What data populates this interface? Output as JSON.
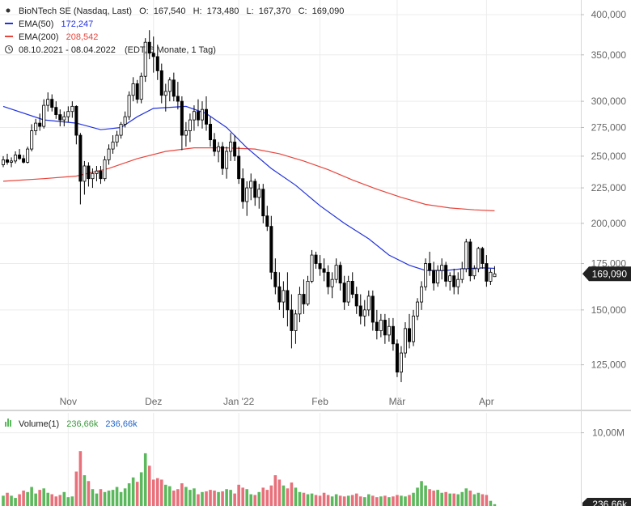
{
  "chart_data": {
    "type": "candlestick",
    "legend": {
      "main": {
        "label": "BioNTech SE (Nasdaq, Last)",
        "o_label": "O:",
        "o": "167,540",
        "h_label": "H:",
        "h": "173,480",
        "l_label": "L:",
        "l": "167,370",
        "c_label": "C:",
        "c": "169,090"
      },
      "ema50": {
        "label": "EMA(50)",
        "value": "172,247",
        "color": "#2233dd"
      },
      "ema200": {
        "label": "EMA(200)",
        "value": "208,542",
        "color": "#e8453c"
      },
      "range": {
        "text": "08.10.2021 - 08.04.2022",
        "note": "(EDT, 6 Monate, 1 Tag)"
      }
    },
    "y_scale": "log",
    "y_range": [
      108,
      420
    ],
    "y_ticks": [
      {
        "value": 125,
        "label": "125,000"
      },
      {
        "value": 150,
        "label": "150,000"
      },
      {
        "value": 175,
        "label": "175,000"
      },
      {
        "value": 200,
        "label": "200,000"
      },
      {
        "value": 225,
        "label": "225,000"
      },
      {
        "value": 250,
        "label": "250,000"
      },
      {
        "value": 275,
        "label": "275,000"
      },
      {
        "value": 300,
        "label": "300,000"
      },
      {
        "value": 350,
        "label": "350,000"
      },
      {
        "value": 400,
        "label": "400,000"
      }
    ],
    "x_ticks": [
      {
        "index": 16,
        "label": "Nov"
      },
      {
        "index": 37,
        "label": "Dez"
      },
      {
        "index": 58,
        "label": "Jan '22"
      },
      {
        "index": 78,
        "label": "Feb"
      },
      {
        "index": 97,
        "label": "Mär"
      },
      {
        "index": 119,
        "label": "Apr"
      }
    ],
    "last_price": {
      "value": 169.09,
      "label": "169,090"
    },
    "candles": [
      [
        243,
        250,
        241,
        247
      ],
      [
        247,
        252,
        243,
        245
      ],
      [
        245,
        249,
        241,
        246
      ],
      [
        246,
        254,
        244,
        251
      ],
      [
        251,
        256,
        247,
        248
      ],
      [
        248,
        251,
        244,
        245
      ],
      [
        245,
        258,
        244,
        256
      ],
      [
        256,
        278,
        254,
        272
      ],
      [
        272,
        283,
        268,
        279
      ],
      [
        279,
        288,
        272,
        276
      ],
      [
        276,
        302,
        274,
        296
      ],
      [
        296,
        309,
        290,
        302
      ],
      [
        302,
        307,
        290,
        294
      ],
      [
        294,
        300,
        283,
        287
      ],
      [
        287,
        292,
        276,
        282
      ],
      [
        282,
        290,
        276,
        285
      ],
      [
        285,
        295,
        280,
        290
      ],
      [
        290,
        300,
        284,
        295
      ],
      [
        295,
        296,
        260,
        268
      ],
      [
        268,
        270,
        213,
        230
      ],
      [
        230,
        246,
        220,
        242
      ],
      [
        242,
        245,
        226,
        232
      ],
      [
        232,
        240,
        225,
        236
      ],
      [
        236,
        242,
        230,
        238
      ],
      [
        238,
        242,
        228,
        232
      ],
      [
        232,
        250,
        230,
        247
      ],
      [
        247,
        260,
        243,
        256
      ],
      [
        256,
        268,
        252,
        262
      ],
      [
        262,
        272,
        258,
        268
      ],
      [
        268,
        280,
        265,
        278
      ],
      [
        278,
        290,
        275,
        285
      ],
      [
        285,
        310,
        282,
        306
      ],
      [
        306,
        325,
        300,
        318
      ],
      [
        318,
        322,
        298,
        302
      ],
      [
        302,
        330,
        298,
        326
      ],
      [
        326,
        370,
        320,
        365
      ],
      [
        365,
        380,
        345,
        352
      ],
      [
        352,
        372,
        330,
        348
      ],
      [
        348,
        362,
        322,
        332
      ],
      [
        332,
        340,
        298,
        306
      ],
      [
        306,
        318,
        290,
        310
      ],
      [
        310,
        325,
        300,
        322
      ],
      [
        322,
        330,
        300,
        305
      ],
      [
        305,
        320,
        292,
        300
      ],
      [
        300,
        305,
        255,
        268
      ],
      [
        268,
        280,
        258,
        272
      ],
      [
        272,
        288,
        262,
        282
      ],
      [
        282,
        296,
        272,
        290
      ],
      [
        290,
        302,
        276,
        282
      ],
      [
        282,
        300,
        274,
        292
      ],
      [
        292,
        305,
        272,
        278
      ],
      [
        278,
        285,
        258,
        264
      ],
      [
        264,
        270,
        250,
        254
      ],
      [
        254,
        262,
        245,
        258
      ],
      [
        258,
        262,
        235,
        240
      ],
      [
        240,
        258,
        232,
        254
      ],
      [
        254,
        270,
        246,
        262
      ],
      [
        262,
        268,
        246,
        250
      ],
      [
        250,
        258,
        228,
        232
      ],
      [
        232,
        240,
        210,
        215
      ],
      [
        215,
        230,
        205,
        225
      ],
      [
        225,
        236,
        216,
        230
      ],
      [
        230,
        232,
        212,
        218
      ],
      [
        218,
        228,
        210,
        224
      ],
      [
        224,
        228,
        200,
        205
      ],
      [
        205,
        212,
        195,
        198
      ],
      [
        198,
        205,
        166,
        170
      ],
      [
        170,
        178,
        158,
        162
      ],
      [
        162,
        170,
        150,
        154
      ],
      [
        154,
        165,
        146,
        160
      ],
      [
        160,
        170,
        142,
        150
      ],
      [
        150,
        158,
        132,
        140
      ],
      [
        140,
        150,
        134,
        148
      ],
      [
        148,
        162,
        144,
        158
      ],
      [
        158,
        166,
        148,
        153
      ],
      [
        153,
        168,
        152,
        165
      ],
      [
        165,
        183,
        164,
        180
      ],
      [
        180,
        182,
        172,
        175
      ],
      [
        175,
        180,
        168,
        172
      ],
      [
        172,
        178,
        165,
        170
      ],
      [
        170,
        174,
        158,
        162
      ],
      [
        162,
        170,
        156,
        166
      ],
      [
        166,
        178,
        164,
        174
      ],
      [
        174,
        176,
        160,
        164
      ],
      [
        164,
        168,
        150,
        154
      ],
      [
        154,
        168,
        152,
        165
      ],
      [
        165,
        170,
        156,
        158
      ],
      [
        158,
        162,
        148,
        152
      ],
      [
        152,
        158,
        143,
        147
      ],
      [
        147,
        155,
        142,
        150
      ],
      [
        150,
        160,
        147,
        157
      ],
      [
        157,
        160,
        140,
        144
      ],
      [
        144,
        150,
        136,
        140
      ],
      [
        140,
        148,
        137,
        145
      ],
      [
        145,
        148,
        134,
        138
      ],
      [
        138,
        146,
        135,
        142
      ],
      [
        142,
        146,
        131,
        134
      ],
      [
        134,
        136,
        120,
        122
      ],
      [
        122,
        133,
        118,
        130
      ],
      [
        130,
        144,
        128,
        141
      ],
      [
        141,
        148,
        132,
        135
      ],
      [
        135,
        150,
        133,
        147
      ],
      [
        147,
        156,
        145,
        154
      ],
      [
        154,
        165,
        150,
        162
      ],
      [
        162,
        178,
        160,
        175
      ],
      [
        175,
        182,
        168,
        171
      ],
      [
        171,
        176,
        160,
        164
      ],
      [
        164,
        174,
        162,
        171
      ],
      [
        171,
        178,
        166,
        174
      ],
      [
        174,
        176,
        162,
        165
      ],
      [
        165,
        170,
        160,
        168
      ],
      [
        168,
        172,
        158,
        162
      ],
      [
        162,
        170,
        158,
        166
      ],
      [
        166,
        176,
        164,
        172
      ],
      [
        172,
        190,
        170,
        188
      ],
      [
        188,
        190,
        165,
        168
      ],
      [
        168,
        174,
        166,
        172
      ],
      [
        172,
        185,
        170,
        184
      ],
      [
        184,
        185,
        172,
        175
      ],
      [
        175,
        180,
        162,
        165
      ],
      [
        165,
        172,
        163,
        170
      ],
      [
        167.54,
        173.48,
        167.37,
        169.09
      ]
    ],
    "ema50": [
      [
        0,
        295
      ],
      [
        10,
        282
      ],
      [
        18,
        279
      ],
      [
        24,
        273
      ],
      [
        29,
        275
      ],
      [
        33,
        285
      ],
      [
        37,
        293
      ],
      [
        45,
        295
      ],
      [
        50,
        288
      ],
      [
        55,
        275
      ],
      [
        60,
        257
      ],
      [
        66,
        240
      ],
      [
        72,
        227
      ],
      [
        78,
        212
      ],
      [
        84,
        200
      ],
      [
        90,
        190
      ],
      [
        95,
        180
      ],
      [
        100,
        174
      ],
      [
        104,
        171
      ],
      [
        109,
        171
      ],
      [
        113,
        172
      ],
      [
        118,
        172.5
      ],
      [
        121,
        172.2
      ]
    ],
    "ema200": [
      [
        0,
        230
      ],
      [
        10,
        232
      ],
      [
        18,
        234
      ],
      [
        26,
        240
      ],
      [
        33,
        248
      ],
      [
        40,
        254
      ],
      [
        47,
        257
      ],
      [
        55,
        257
      ],
      [
        62,
        256
      ],
      [
        68,
        252
      ],
      [
        74,
        246
      ],
      [
        80,
        239
      ],
      [
        86,
        231
      ],
      [
        92,
        224
      ],
      [
        98,
        218
      ],
      [
        104,
        213
      ],
      [
        110,
        210.5
      ],
      [
        116,
        209.2
      ],
      [
        121,
        208.5
      ]
    ],
    "volume": {
      "label": "Volume(1)",
      "value_1": "236,66k",
      "value_2": "236,66k",
      "axis_tick": {
        "value": 10,
        "label": "10,00M"
      },
      "axis_max": 12.5,
      "last_label": "236,66k",
      "values_m": [
        1.4,
        1.8,
        1.4,
        1.1,
        1.6,
        2.1,
        1.9,
        2.6,
        1.7,
        2.2,
        2.4,
        1.8,
        1.6,
        1.3,
        1.5,
        1.9,
        1.2,
        1.3,
        4.7,
        7.5,
        4.2,
        3.4,
        2.3,
        1.7,
        2.3,
        1.9,
        2.1,
        2.2,
        2.6,
        1.9,
        2.4,
        3.1,
        3.9,
        3.3,
        4.6,
        7.2,
        5.5,
        3.6,
        3.8,
        3.6,
        2.9,
        2.7,
        2.1,
        2.3,
        3.1,
        2.6,
        2.2,
        2.4,
        1.6,
        1.9,
        2.0,
        2.2,
        2.1,
        1.9,
        2.0,
        2.3,
        2.2,
        1.7,
        2.9,
        2.5,
        2.3,
        1.6,
        1.5,
        1.9,
        2.5,
        2.2,
        2.8,
        4.2,
        3.6,
        2.8,
        2.4,
        3.2,
        2.5,
        1.9,
        1.8,
        1.6,
        1.7,
        1.5,
        1.4,
        1.8,
        1.5,
        1.3,
        1.6,
        1.4,
        1.3,
        1.4,
        1.5,
        1.7,
        1.3,
        1.2,
        1.6,
        1.4,
        1.2,
        1.3,
        1.4,
        1.2,
        1.3,
        1.5,
        1.4,
        1.3,
        1.5,
        1.8,
        2.5,
        3.4,
        2.8,
        2.3,
        2.1,
        2.2,
        1.8,
        1.9,
        1.7,
        1.7,
        1.6,
        1.9,
        2.4,
        2.1,
        1.6,
        1.8,
        1.6,
        1.5,
        0.7,
        0.24
      ],
      "up_color": "#5cb85c",
      "down_color": "#e8707a"
    }
  }
}
